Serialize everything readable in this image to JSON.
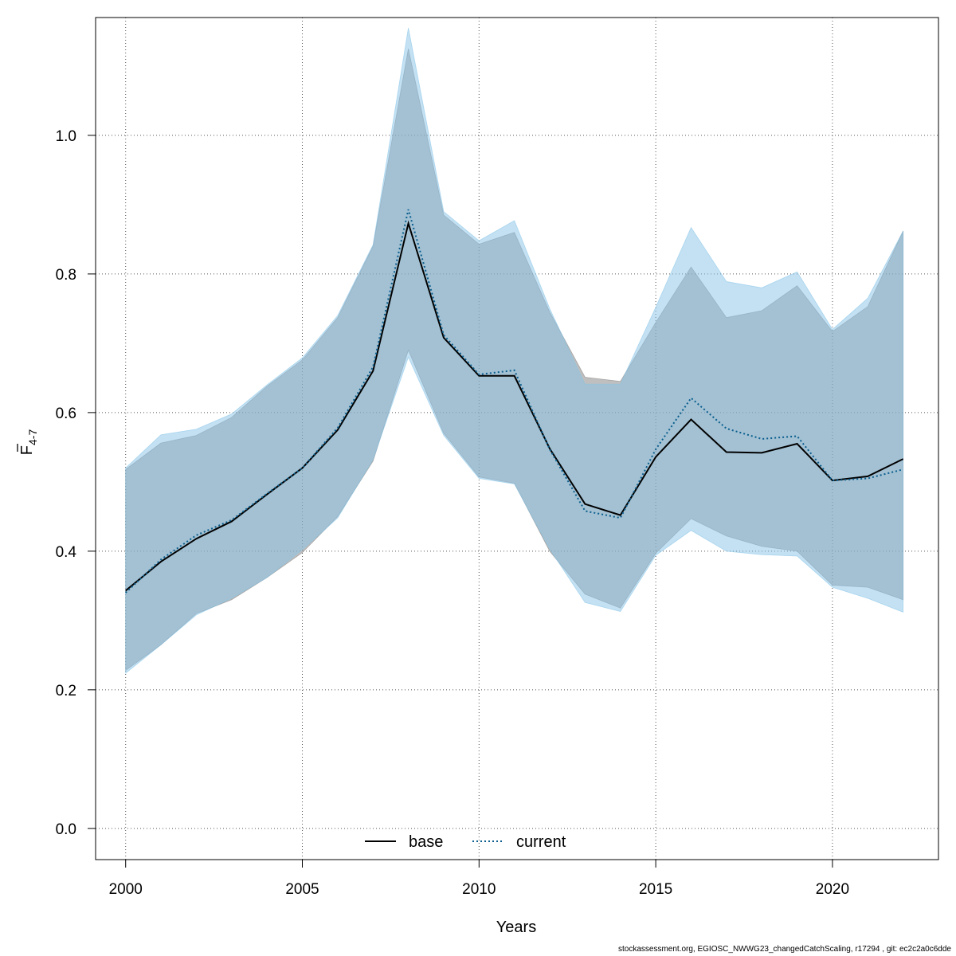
{
  "chart_data": {
    "type": "area",
    "xlabel": "Years",
    "ylabel": {
      "main": "F",
      "subscript": "4-7"
    },
    "xlim": [
      1999.15,
      2023.0
    ],
    "ylim": [
      -0.045,
      1.17
    ],
    "xticks": [
      2000,
      2005,
      2010,
      2015,
      2020
    ],
    "yticks": [
      0.0,
      0.2,
      0.4,
      0.6,
      0.8,
      1.0
    ],
    "ytick_labels": [
      "0.0",
      "0.2",
      "0.4",
      "0.6",
      "0.8",
      "1.0"
    ],
    "grid": true,
    "legend_position": "bottom-center",
    "x": [
      2000,
      2001,
      2002,
      2003,
      2004,
      2005,
      2006,
      2007,
      2008,
      2009,
      2010,
      2011,
      2012,
      2013,
      2014,
      2015,
      2016,
      2017,
      2018,
      2019,
      2020,
      2021,
      2022
    ],
    "series": [
      {
        "name": "base",
        "line_style": "solid",
        "line_color": "#000000",
        "band_color": "#808080",
        "values": [
          0.343,
          0.385,
          0.418,
          0.443,
          0.482,
          0.52,
          0.575,
          0.66,
          0.873,
          0.708,
          0.653,
          0.653,
          0.548,
          0.468,
          0.452,
          0.536,
          0.59,
          0.543,
          0.542,
          0.555,
          0.502,
          0.508,
          0.533
        ],
        "lower": [
          0.228,
          0.265,
          0.31,
          0.33,
          0.362,
          0.398,
          0.45,
          0.53,
          0.69,
          0.57,
          0.507,
          0.498,
          0.4,
          0.338,
          0.318,
          0.397,
          0.447,
          0.422,
          0.407,
          0.4,
          0.351,
          0.348,
          0.33
        ],
        "upper": [
          0.518,
          0.556,
          0.567,
          0.593,
          0.638,
          0.676,
          0.737,
          0.84,
          1.125,
          0.885,
          0.843,
          0.86,
          0.745,
          0.651,
          0.645,
          0.73,
          0.81,
          0.737,
          0.747,
          0.783,
          0.717,
          0.753,
          0.862
        ]
      },
      {
        "name": "current",
        "line_style": "dotted",
        "line_color": "#0b5e8e",
        "band_color": "#87c4e8",
        "values": [
          0.34,
          0.388,
          0.423,
          0.445,
          0.483,
          0.52,
          0.578,
          0.666,
          0.893,
          0.712,
          0.655,
          0.661,
          0.547,
          0.458,
          0.448,
          0.547,
          0.621,
          0.577,
          0.562,
          0.566,
          0.502,
          0.505,
          0.518
        ],
        "lower": [
          0.224,
          0.265,
          0.308,
          0.332,
          0.362,
          0.402,
          0.448,
          0.532,
          0.68,
          0.567,
          0.505,
          0.497,
          0.403,
          0.326,
          0.313,
          0.394,
          0.43,
          0.4,
          0.395,
          0.393,
          0.348,
          0.332,
          0.312
        ],
        "upper": [
          0.52,
          0.568,
          0.576,
          0.598,
          0.64,
          0.679,
          0.74,
          0.842,
          1.155,
          0.89,
          0.848,
          0.877,
          0.75,
          0.641,
          0.641,
          0.752,
          0.867,
          0.789,
          0.78,
          0.803,
          0.72,
          0.765,
          0.862
        ]
      }
    ]
  },
  "footer_text": "stockassessment.org, EGIOSC_NWWG23_changedCatchScaling, r17294 , git: ec2c2a0c6dde"
}
